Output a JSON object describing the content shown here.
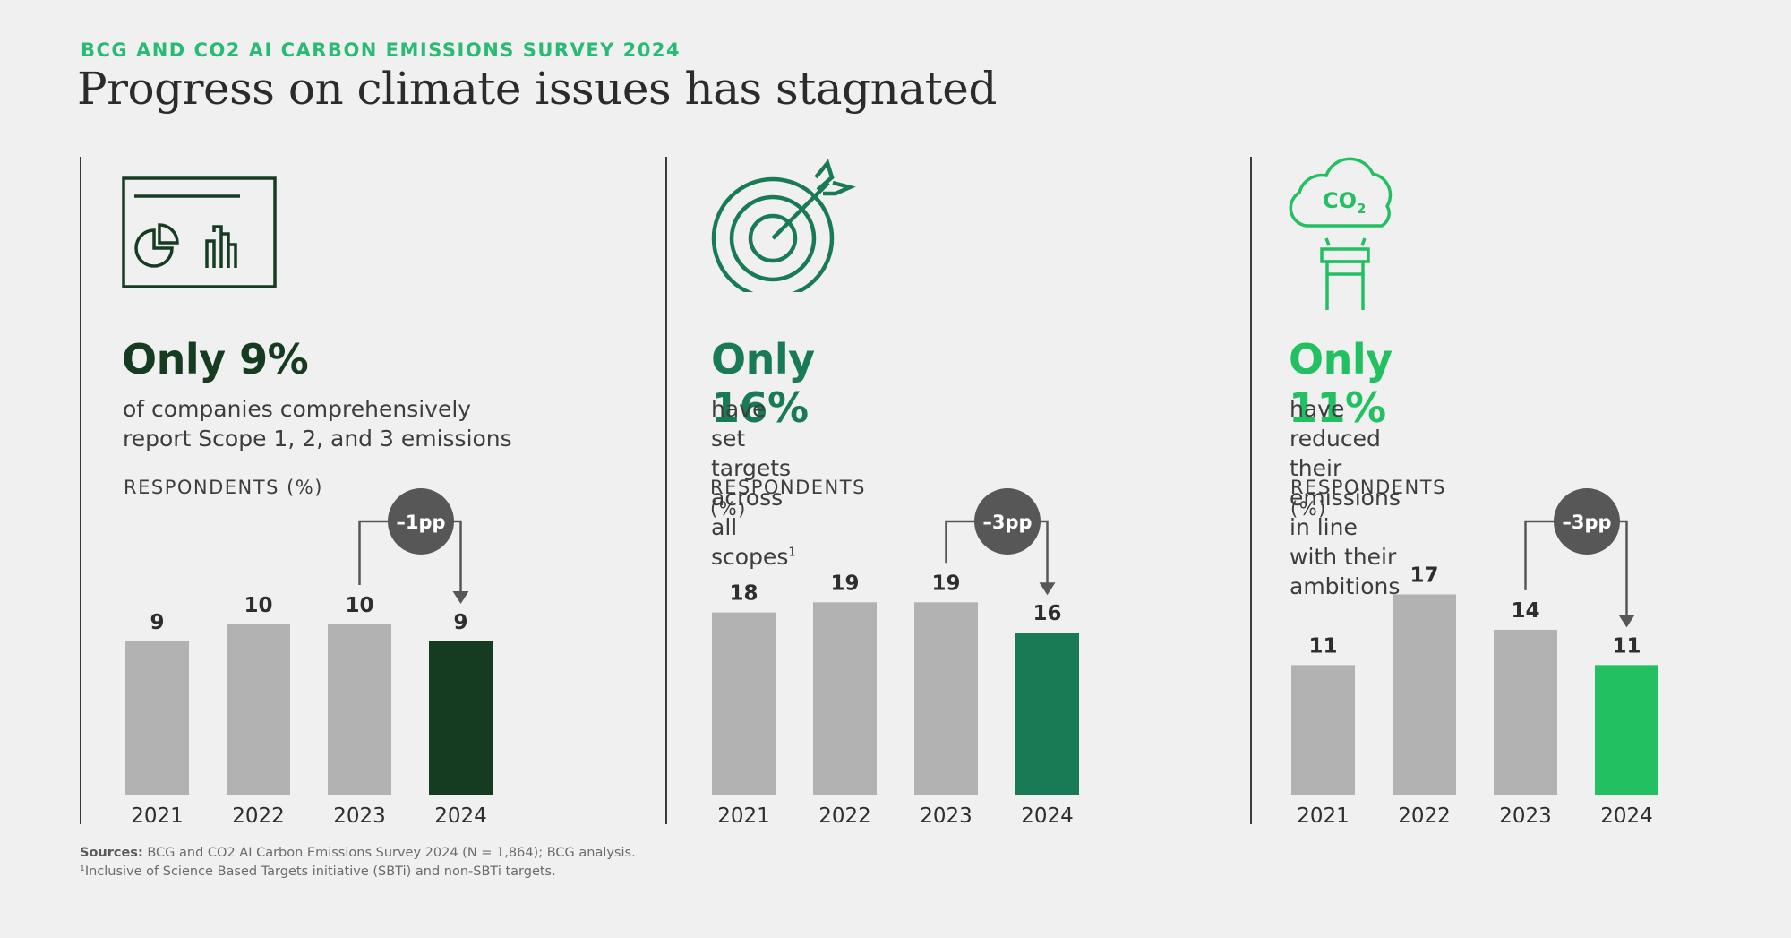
{
  "header": {
    "eyebrow": "BCG AND CO2 AI CARBON EMISSIONS SURVEY 2024",
    "title": "Progress on climate issues has stagnated"
  },
  "colors": {
    "gray_bar": "#b2b2b2",
    "dark_green": "#153c20",
    "mid_green": "#197a56",
    "bright_green": "#22c061",
    "badge": "#575757"
  },
  "panels": [
    {
      "icon": "dashboard-chart-icon",
      "headline": "Only 9%",
      "description": "of companies comprehensively\nreport Scope 1, 2, and 3 emissions",
      "footnote_mark": "",
      "respondents_label": "RESPONDENTS (%)",
      "accent": "#153c20"
    },
    {
      "icon": "target-arrow-icon",
      "headline": "Only 16%",
      "description": "have set targets across all scopes",
      "footnote_mark": "1",
      "respondents_label": "RESPONDENTS (%)",
      "accent": "#197a56"
    },
    {
      "icon": "co2-cloud-icon",
      "headline": "Only 11%",
      "description": "have reduced their emissions\nin line with their ambitions",
      "footnote_mark": "",
      "respondents_label": "RESPONDENTS (%)",
      "accent": "#22c061"
    }
  ],
  "chart_data": [
    {
      "type": "bar",
      "categories": [
        "2021",
        "2022",
        "2023",
        "2024"
      ],
      "values": [
        9,
        10,
        10,
        9
      ],
      "ylabel": "RESPONDENTS (%)",
      "change_label": "–1pp",
      "highlight_index": 3,
      "highlight_color": "#153c20"
    },
    {
      "type": "bar",
      "categories": [
        "2021",
        "2022",
        "2023",
        "2024"
      ],
      "values": [
        18,
        19,
        19,
        16
      ],
      "ylabel": "RESPONDENTS (%)",
      "change_label": "–3pp",
      "highlight_index": 3,
      "highlight_color": "#197a56"
    },
    {
      "type": "bar",
      "categories": [
        "2021",
        "2022",
        "2023",
        "2024"
      ],
      "values": [
        11,
        17,
        14,
        11
      ],
      "ylabel": "RESPONDENTS (%)",
      "change_label": "–3pp",
      "highlight_index": 3,
      "highlight_color": "#22c061"
    }
  ],
  "footer": {
    "sources_label": "Sources:",
    "sources_text": " BCG and CO2 AI Carbon Emissions Survey 2024 (N = 1,864); BCG analysis.",
    "footnote": "¹Inclusive of Science Based Targets initiative (SBTi) and non-SBTi targets."
  }
}
